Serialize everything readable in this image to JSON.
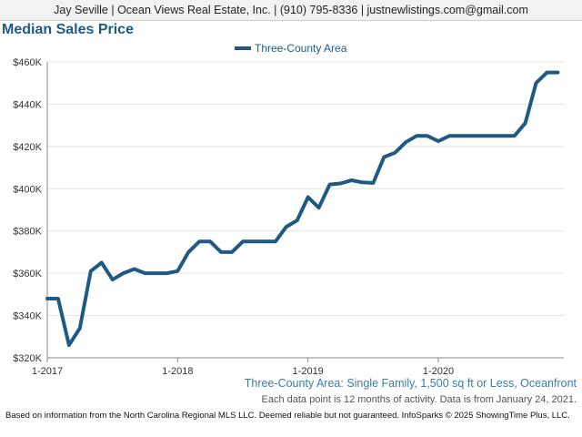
{
  "header": {
    "contact": "Jay Seville | Ocean Views Real Estate, Inc. | (910) 795-8336 | justnewlistings.com@gmail.com"
  },
  "chart_title": "Median Sales Price",
  "subtitle": "Three-County Area: Single Family, 1,500 sq ft or Less, Oceanfront",
  "note": "Each data point is 12 months of activity. Data is from January 24, 2021.",
  "footer": "Based on information from the North Carolina Regional MLS LLC. Deemed reliable but not guaranteed. InfoSparks © 2025 ShowingTime Plus, LLC.",
  "colors": {
    "series": "#1f5a85",
    "grid": "#e3e3e3",
    "axis": "#888888"
  },
  "chart_data": {
    "type": "line",
    "title": "Median Sales Price",
    "xlabel": "",
    "ylabel": "",
    "ylim": [
      320000,
      460000
    ],
    "yticks": [
      320000,
      340000,
      360000,
      380000,
      400000,
      420000,
      440000,
      460000
    ],
    "ytick_labels": [
      "$320K",
      "$340K",
      "$360K",
      "$380K",
      "$400K",
      "$420K",
      "$440K",
      "$460K"
    ],
    "xticks": [
      "1-2017",
      "1-2018",
      "1-2019",
      "1-2020"
    ],
    "x": [
      "2017-01",
      "2017-02",
      "2017-03",
      "2017-04",
      "2017-05",
      "2017-06",
      "2017-07",
      "2017-08",
      "2017-09",
      "2017-10",
      "2017-11",
      "2017-12",
      "2018-01",
      "2018-02",
      "2018-03",
      "2018-04",
      "2018-05",
      "2018-06",
      "2018-07",
      "2018-08",
      "2018-09",
      "2018-10",
      "2018-11",
      "2018-12",
      "2019-01",
      "2019-02",
      "2019-03",
      "2019-04",
      "2019-05",
      "2019-06",
      "2019-07",
      "2019-08",
      "2019-09",
      "2019-10",
      "2019-11",
      "2019-12",
      "2020-01",
      "2020-02",
      "2020-03",
      "2020-04",
      "2020-05",
      "2020-06",
      "2020-07",
      "2020-08",
      "2020-09",
      "2020-10",
      "2020-11",
      "2020-12"
    ],
    "legend_position": "top-center",
    "grid": true,
    "series": [
      {
        "name": "Three-County Area",
        "values": [
          348000,
          348000,
          326000,
          334000,
          361000,
          365000,
          357000,
          360000,
          362000,
          360000,
          360000,
          360000,
          361000,
          370000,
          375000,
          375000,
          370000,
          370000,
          375000,
          375000,
          375000,
          375000,
          382000,
          385000,
          396000,
          391000,
          402000,
          402500,
          404000,
          403000,
          402700,
          415000,
          417000,
          422000,
          425000,
          425000,
          422500,
          425000,
          425000,
          425000,
          425000,
          425000,
          425000,
          425000,
          431000,
          450000,
          455000,
          455000
        ]
      }
    ]
  }
}
